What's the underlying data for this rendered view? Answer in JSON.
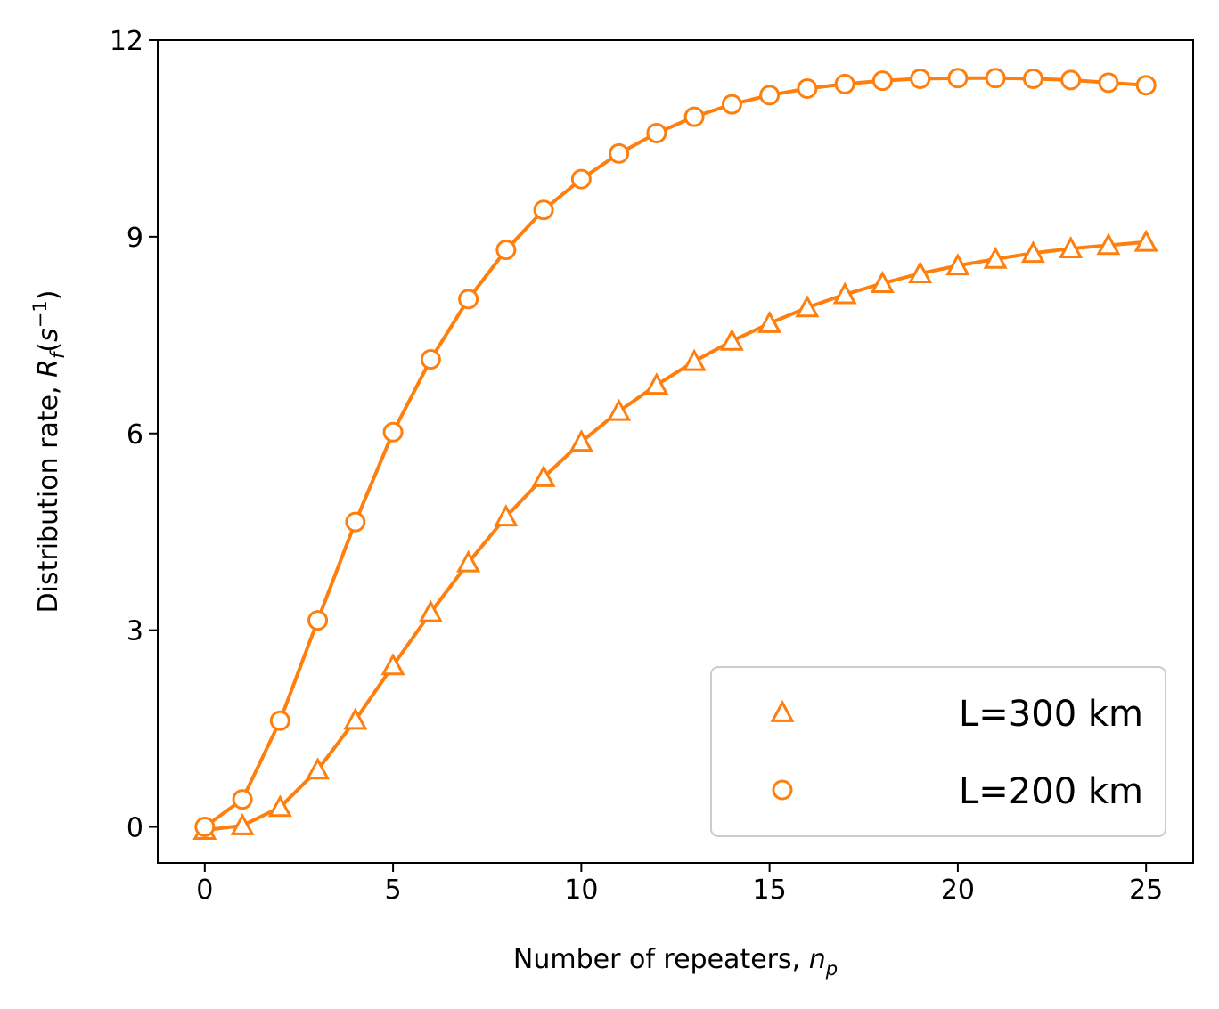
{
  "chart_data": {
    "type": "line",
    "title": "",
    "xlabel": {
      "main": "Number of repeaters, ",
      "var": "n",
      "sub": "p"
    },
    "ylabel": {
      "main": "Distribution rate, ",
      "var": "R",
      "sub": "f",
      "open": "(",
      "unit": "s",
      "sup": "−1",
      "close": ")"
    },
    "xlim": [
      -1.25,
      26.25
    ],
    "ylim": [
      -0.55,
      12
    ],
    "xticks": [
      0,
      5,
      10,
      15,
      20,
      25
    ],
    "yticks": [
      0,
      3,
      6,
      9,
      12
    ],
    "grid": false,
    "legend_position": "lower-right",
    "color": "#ff7f0e",
    "x": [
      0,
      1,
      2,
      3,
      4,
      5,
      6,
      7,
      8,
      9,
      10,
      11,
      12,
      13,
      14,
      15,
      16,
      17,
      18,
      19,
      20,
      21,
      22,
      23,
      24,
      25
    ],
    "series": [
      {
        "name": "L=300 km",
        "marker": "triangle",
        "values": [
          -0.05,
          0.02,
          0.3,
          0.87,
          1.63,
          2.46,
          3.27,
          4.03,
          4.73,
          5.33,
          5.87,
          6.34,
          6.74,
          7.1,
          7.41,
          7.68,
          7.92,
          8.12,
          8.29,
          8.44,
          8.56,
          8.66,
          8.75,
          8.82,
          8.87,
          8.92
        ]
      },
      {
        "name": "L=200 km",
        "marker": "circle",
        "values": [
          0.0,
          0.42,
          1.62,
          3.15,
          4.65,
          6.02,
          7.13,
          8.05,
          8.8,
          9.41,
          9.88,
          10.27,
          10.58,
          10.83,
          11.02,
          11.16,
          11.26,
          11.33,
          11.38,
          11.41,
          11.42,
          11.42,
          11.41,
          11.39,
          11.35,
          11.31
        ]
      }
    ]
  }
}
